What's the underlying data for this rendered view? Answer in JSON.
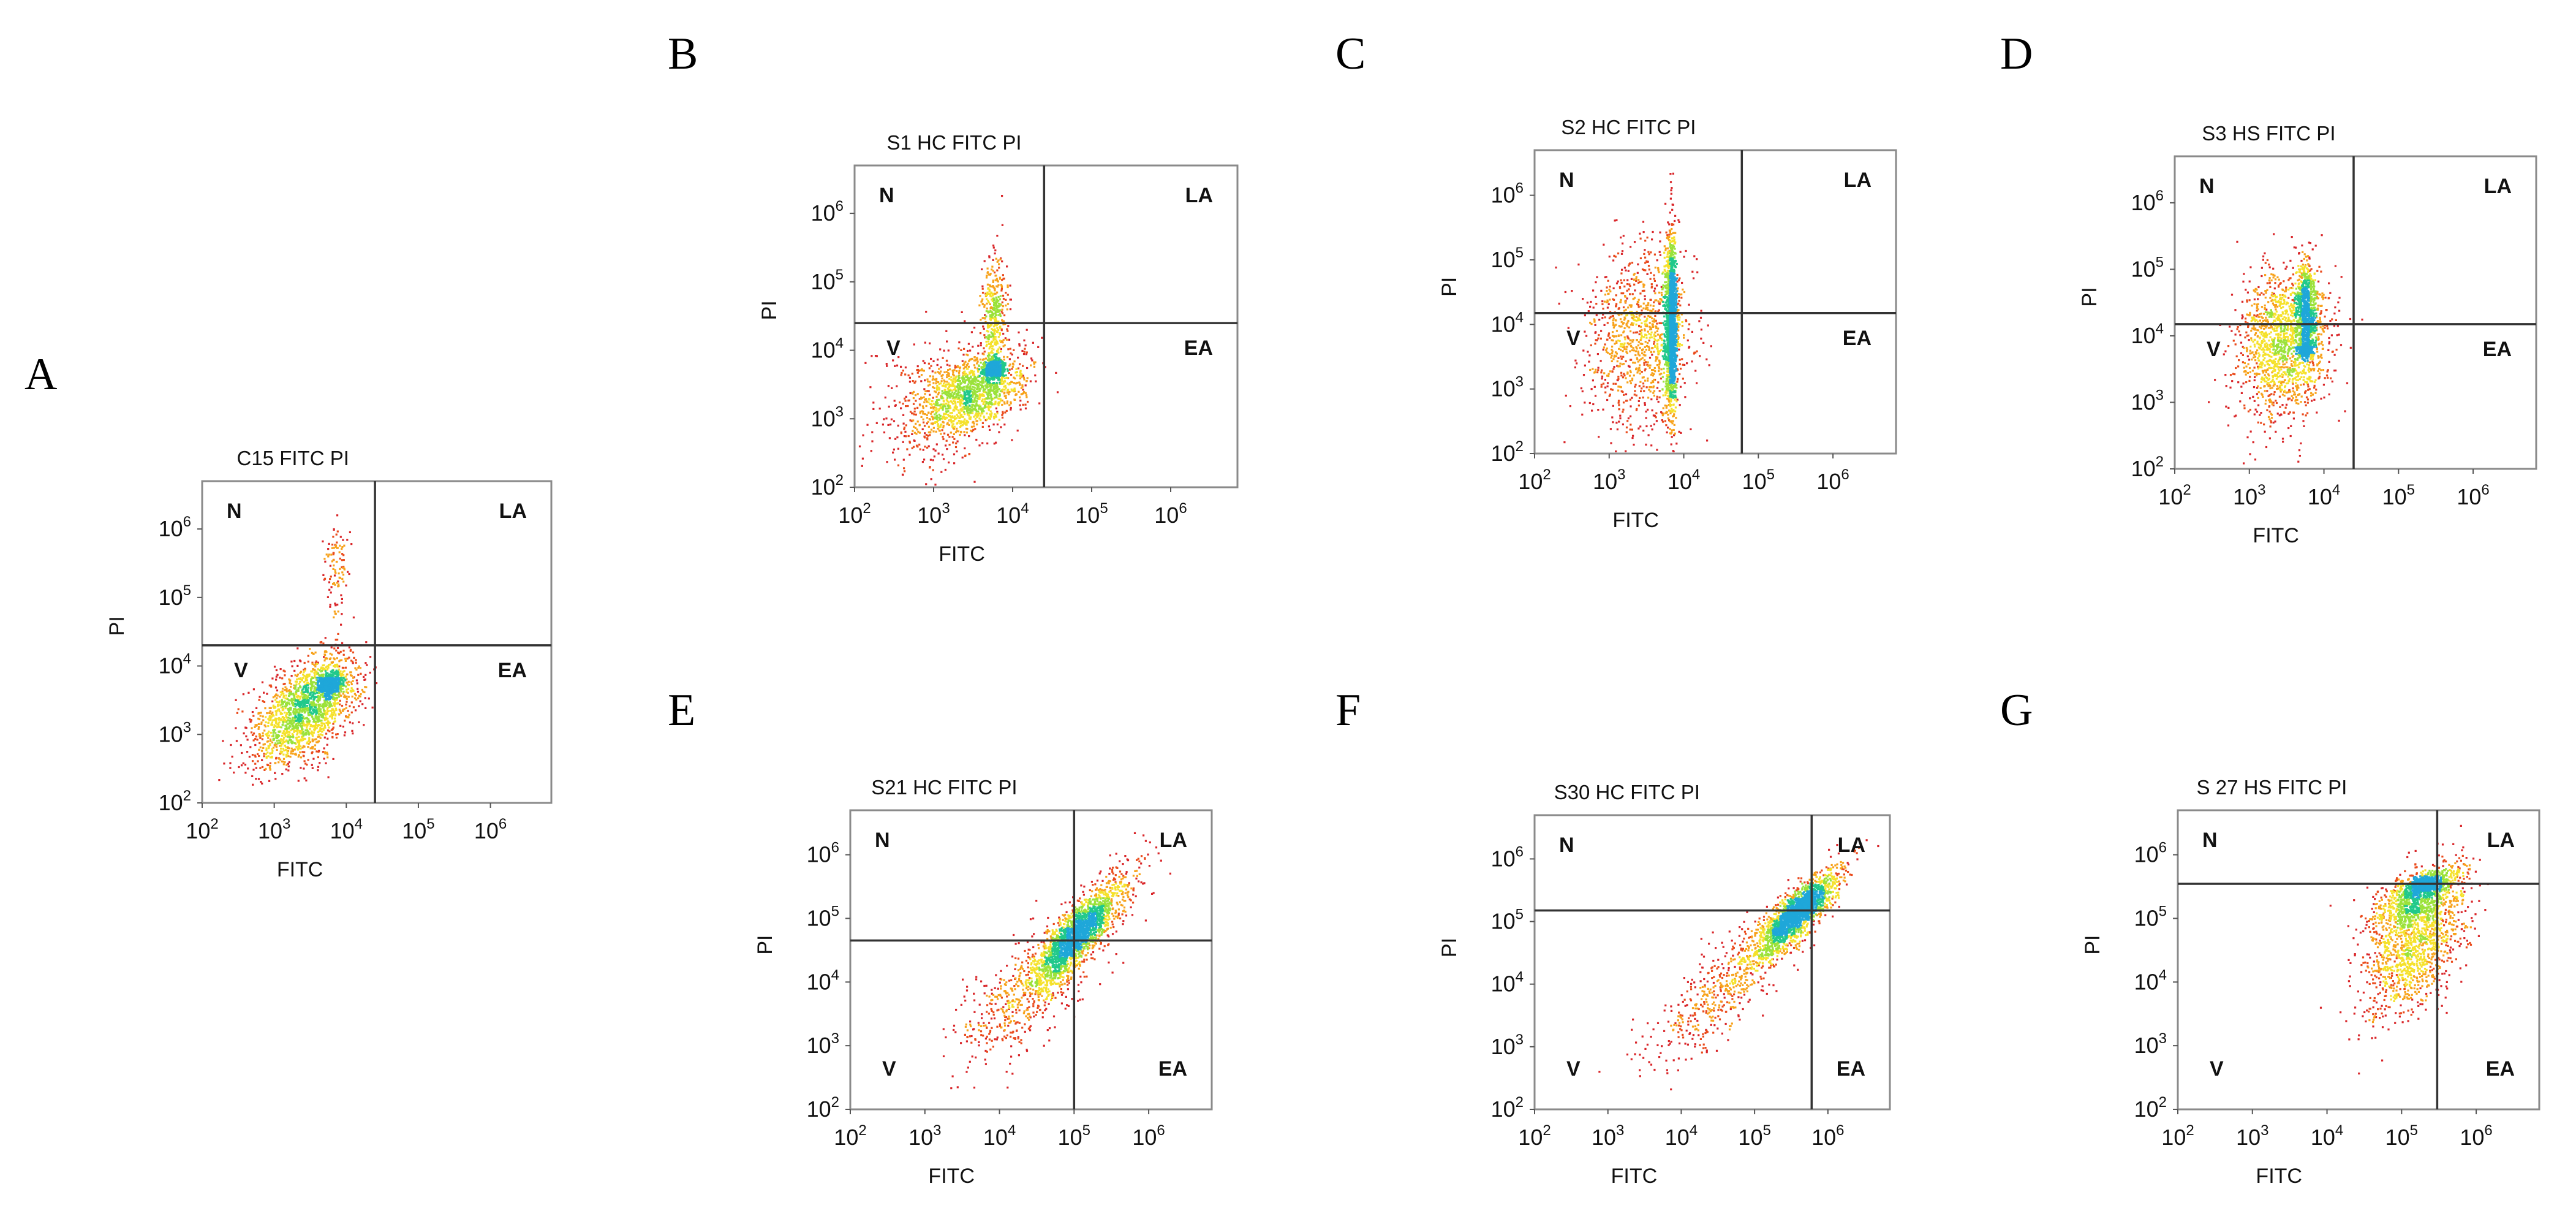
{
  "chart_data": [
    {
      "id": "A",
      "type": "scatter",
      "plot_kind": "flow-cytometry density dot plot",
      "panel_label": "A",
      "title": "C15 FITC PI",
      "xlabel": "FITC",
      "ylabel": "PI",
      "xscale": "log",
      "yscale": "log",
      "xlim": [
        100,
        7000000
      ],
      "ylim": [
        100,
        5000000
      ],
      "x_ticks": [
        "10^2",
        "10^3",
        "10^4",
        "10^5",
        "10^6"
      ],
      "y_ticks": [
        "10^2",
        "10^3",
        "10^4",
        "10^5",
        "10^6"
      ],
      "gate": {
        "x": 25000,
        "y": 20000
      },
      "quadrants": {
        "top_left": "N",
        "top_right": "LA",
        "bottom_left": "V",
        "bottom_right": "EA"
      },
      "populations": [
        {
          "log_x": 3.5,
          "log_y": 3.5,
          "sd_x": 0.35,
          "sd_y": 0.35,
          "rho": 0.45,
          "weight": 0.55
        },
        {
          "log_x": 3.75,
          "log_y": 3.75,
          "sd_x": 0.08,
          "sd_y": 0.07,
          "rho": 0.2,
          "weight": 0.25
        },
        {
          "log_x": 3.85,
          "log_y": 5.4,
          "sd_x": 0.08,
          "sd_y": 0.35,
          "rho": 0,
          "weight": 0.04
        },
        {
          "log_x": 3.2,
          "log_y": 3.0,
          "sd_x": 0.35,
          "sd_y": 0.3,
          "rho": 0.3,
          "weight": 0.16
        }
      ]
    },
    {
      "id": "B",
      "type": "scatter",
      "plot_kind": "flow-cytometry density dot plot",
      "panel_label": "B",
      "title": "S1 HC FITC PI",
      "xlabel": "FITC",
      "ylabel": "PI",
      "xscale": "log",
      "yscale": "log",
      "xlim": [
        100,
        7000000
      ],
      "ylim": [
        100,
        5000000
      ],
      "x_ticks": [
        "10^2",
        "10^3",
        "10^4",
        "10^5",
        "10^6"
      ],
      "y_ticks": [
        "10^2",
        "10^3",
        "10^4",
        "10^5",
        "10^6"
      ],
      "gate": {
        "x": 25000,
        "y": 25000
      },
      "quadrants": {
        "top_left": "N",
        "top_right": "LA",
        "bottom_left": "V",
        "bottom_right": "EA"
      },
      "populations": [
        {
          "log_x": 3.5,
          "log_y": 3.4,
          "sd_x": 0.33,
          "sd_y": 0.3,
          "rho": 0.4,
          "weight": 0.5
        },
        {
          "log_x": 3.75,
          "log_y": 3.75,
          "sd_x": 0.06,
          "sd_y": 0.06,
          "rho": 0.1,
          "weight": 0.2
        },
        {
          "log_x": 3.75,
          "log_y": 4.6,
          "sd_x": 0.08,
          "sd_y": 0.4,
          "rho": 0,
          "weight": 0.15
        },
        {
          "log_x": 3.0,
          "log_y": 3.2,
          "sd_x": 0.4,
          "sd_y": 0.5,
          "rho": 0.2,
          "weight": 0.15
        }
      ]
    },
    {
      "id": "C",
      "type": "scatter",
      "plot_kind": "flow-cytometry density dot plot",
      "panel_label": "C",
      "title": "S2 HC FITC PI",
      "xlabel": "FITC",
      "ylabel": "PI",
      "xscale": "log",
      "yscale": "log",
      "xlim": [
        100,
        7000000
      ],
      "ylim": [
        100,
        5000000
      ],
      "x_ticks": [
        "10^2",
        "10^3",
        "10^4",
        "10^5",
        "10^6"
      ],
      "y_ticks": [
        "10^2",
        "10^3",
        "10^4",
        "10^5",
        "10^6"
      ],
      "gate": {
        "x": 60000,
        "y": 15000
      },
      "quadrants": {
        "top_left": "N",
        "top_right": "LA",
        "bottom_left": "V",
        "bottom_right": "EA"
      },
      "populations": [
        {
          "log_x": 3.82,
          "log_y": 4.0,
          "sd_x": 0.04,
          "sd_y": 0.7,
          "rho": 0,
          "weight": 0.6
        },
        {
          "log_x": 3.4,
          "log_y": 3.8,
          "sd_x": 0.35,
          "sd_y": 0.7,
          "rho": 0,
          "weight": 0.4
        }
      ]
    },
    {
      "id": "D",
      "type": "scatter",
      "plot_kind": "flow-cytometry density dot plot",
      "panel_label": "D",
      "title": "S3 HS FITC PI",
      "xlabel": "FITC",
      "ylabel": "PI",
      "xscale": "log",
      "yscale": "log",
      "xlim": [
        100,
        7000000
      ],
      "ylim": [
        100,
        5000000
      ],
      "x_ticks": [
        "10^2",
        "10^3",
        "10^4",
        "10^5",
        "10^6"
      ],
      "y_ticks": [
        "10^2",
        "10^3",
        "10^4",
        "10^5",
        "10^6"
      ],
      "gate": {
        "x": 25000,
        "y": 15000
      },
      "quadrants": {
        "top_left": "N",
        "top_right": "LA",
        "bottom_left": "V",
        "bottom_right": "EA"
      },
      "populations": [
        {
          "log_x": 3.75,
          "log_y": 4.4,
          "sd_x": 0.06,
          "sd_y": 0.35,
          "rho": 0,
          "weight": 0.3
        },
        {
          "log_x": 3.75,
          "log_y": 3.8,
          "sd_x": 0.05,
          "sd_y": 0.05,
          "rho": 0,
          "weight": 0.1
        },
        {
          "log_x": 3.45,
          "log_y": 3.9,
          "sd_x": 0.3,
          "sd_y": 0.55,
          "rho": 0.1,
          "weight": 0.6
        }
      ]
    },
    {
      "id": "E",
      "type": "scatter",
      "plot_kind": "flow-cytometry density dot plot",
      "panel_label": "E",
      "title": "S21 HC FITC PI",
      "xlabel": "FITC",
      "ylabel": "PI",
      "xscale": "log",
      "yscale": "log",
      "xlim": [
        100,
        7000000
      ],
      "ylim": [
        100,
        5000000
      ],
      "x_ticks": [
        "10^2",
        "10^3",
        "10^4",
        "10^5",
        "10^6"
      ],
      "y_ticks": [
        "10^2",
        "10^3",
        "10^4",
        "10^5",
        "10^6"
      ],
      "gate": {
        "x": 100000,
        "y": 45000
      },
      "quadrants": {
        "top_left": "N",
        "top_right": "LA",
        "bottom_left": "V",
        "bottom_right": "EA"
      },
      "populations": [
        {
          "log_x": 5.0,
          "log_y": 4.7,
          "sd_x": 0.38,
          "sd_y": 0.5,
          "rho": 0.85,
          "weight": 0.6
        },
        {
          "log_x": 5.05,
          "log_y": 4.8,
          "sd_x": 0.2,
          "sd_y": 0.28,
          "rho": 0.8,
          "weight": 0.25
        },
        {
          "log_x": 4.3,
          "log_y": 3.8,
          "sd_x": 0.45,
          "sd_y": 0.55,
          "rho": 0.6,
          "weight": 0.15
        }
      ]
    },
    {
      "id": "F",
      "type": "scatter",
      "plot_kind": "flow-cytometry density dot plot",
      "panel_label": "F",
      "title": "S30 HC FITC PI",
      "xlabel": "FITC",
      "ylabel": "PI",
      "xscale": "log",
      "yscale": "log",
      "xlim": [
        100,
        7000000
      ],
      "ylim": [
        100,
        5000000
      ],
      "x_ticks": [
        "10^2",
        "10^3",
        "10^4",
        "10^5",
        "10^6"
      ],
      "y_ticks": [
        "10^2",
        "10^3",
        "10^4",
        "10^5",
        "10^6"
      ],
      "gate": {
        "x": 600000,
        "y": 150000
      },
      "quadrants": {
        "top_left": "N",
        "top_right": "LA",
        "bottom_left": "V",
        "bottom_right": "EA"
      },
      "populations": [
        {
          "log_x": 5.55,
          "log_y": 5.1,
          "sd_x": 0.3,
          "sd_y": 0.38,
          "rho": 0.85,
          "weight": 0.6
        },
        {
          "log_x": 5.6,
          "log_y": 5.2,
          "sd_x": 0.15,
          "sd_y": 0.15,
          "rho": 0.7,
          "weight": 0.2
        },
        {
          "log_x": 4.6,
          "log_y": 4.0,
          "sd_x": 0.5,
          "sd_y": 0.6,
          "rho": 0.8,
          "weight": 0.2
        }
      ]
    },
    {
      "id": "G",
      "type": "scatter",
      "plot_kind": "flow-cytometry density dot plot",
      "panel_label": "G",
      "title": "S 27 HS FITC PI",
      "xlabel": "FITC",
      "ylabel": "PI",
      "xscale": "log",
      "yscale": "log",
      "xlim": [
        100,
        7000000
      ],
      "ylim": [
        100,
        5000000
      ],
      "x_ticks": [
        "10^2",
        "10^3",
        "10^4",
        "10^5",
        "10^6"
      ],
      "y_ticks": [
        "10^2",
        "10^3",
        "10^4",
        "10^5",
        "10^6"
      ],
      "gate": {
        "x": 300000,
        "y": 350000
      },
      "quadrants": {
        "top_left": "N",
        "top_right": "LA",
        "bottom_left": "V",
        "bottom_right": "EA"
      },
      "populations": [
        {
          "log_x": 5.2,
          "log_y": 5.35,
          "sd_x": 0.3,
          "sd_y": 0.25,
          "rho": 0.6,
          "weight": 0.3
        },
        {
          "log_x": 5.15,
          "log_y": 4.6,
          "sd_x": 0.35,
          "sd_y": 0.55,
          "rho": 0.5,
          "weight": 0.5
        },
        {
          "log_x": 5.3,
          "log_y": 5.55,
          "sd_x": 0.12,
          "sd_y": 0.08,
          "rho": 0.4,
          "weight": 0.2
        }
      ]
    }
  ]
}
